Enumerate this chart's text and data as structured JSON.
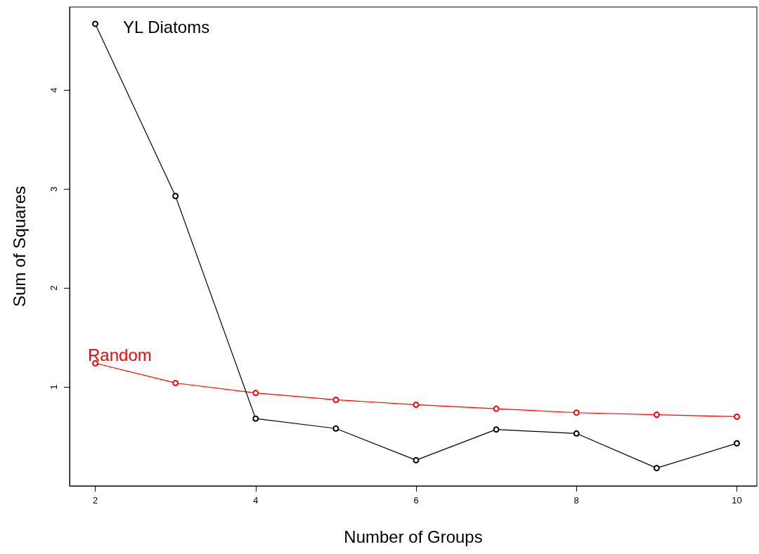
{
  "chart_data": {
    "type": "line",
    "xlabel": "Number of Groups",
    "ylabel": "Sum of Squares",
    "x": [
      2,
      3,
      4,
      5,
      6,
      7,
      8,
      9,
      10
    ],
    "series": [
      {
        "name": "YL Diatoms",
        "color": "#000000",
        "values": [
          4.67,
          2.93,
          0.68,
          0.58,
          0.26,
          0.57,
          0.53,
          0.18,
          0.43
        ]
      },
      {
        "name": "Random",
        "color": "#ff0000",
        "values": [
          1.24,
          1.04,
          0.94,
          0.87,
          0.82,
          0.78,
          0.74,
          0.72,
          0.7
        ]
      }
    ],
    "xlim": [
      1.68,
      10.25
    ],
    "xticks": [
      2,
      4,
      6,
      8,
      10
    ],
    "ylim": [
      0,
      4.84
    ],
    "yticks": [
      1,
      2,
      3,
      4
    ],
    "grid": false,
    "legend": false,
    "marker": "circle",
    "line_style": "solid"
  }
}
